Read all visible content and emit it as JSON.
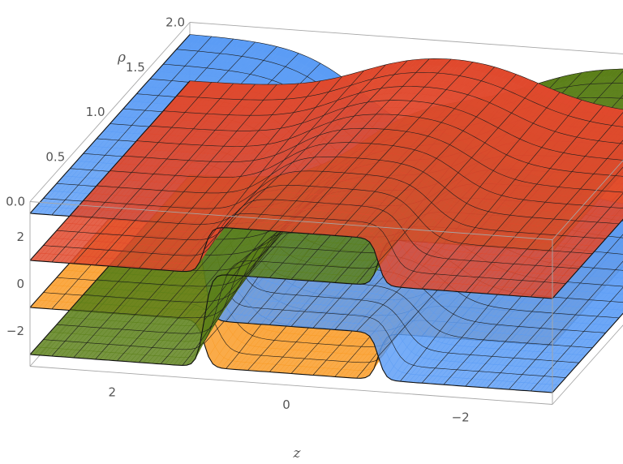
{
  "chart_data": {
    "type": "surface3d",
    "title": "",
    "xlabel": "z",
    "ylabel": "ρ",
    "zlabel": "",
    "xlim": [
      -3,
      3
    ],
    "ylim": [
      0,
      2
    ],
    "zlim": [
      -3.5,
      3.5
    ],
    "x_ticks": [
      "2",
      "0",
      "−2"
    ],
    "y_ticks": [
      "0.0",
      "0.5",
      "1.0",
      "1.5",
      "2.0"
    ],
    "z_ticks": [
      "2",
      "0",
      "−2"
    ],
    "sheets": [
      {
        "color": "#5b9cf5",
        "levels": [
          3,
          -1,
          -3
        ]
      },
      {
        "color": "#e0492d",
        "levels": [
          1,
          3,
          1
        ]
      },
      {
        "color": "#f99a24",
        "levels": [
          -1,
          -3,
          -1
        ]
      },
      {
        "color": "#5b7f19",
        "levels": [
          -3,
          1,
          3
        ]
      }
    ],
    "jump_points_z": [
      -1,
      1
    ],
    "colors": {
      "blue": "#5b9cf5",
      "red": "#e0492d",
      "orange": "#f99a24",
      "green": "#5b7f19",
      "box": "#a6a6a6"
    }
  }
}
